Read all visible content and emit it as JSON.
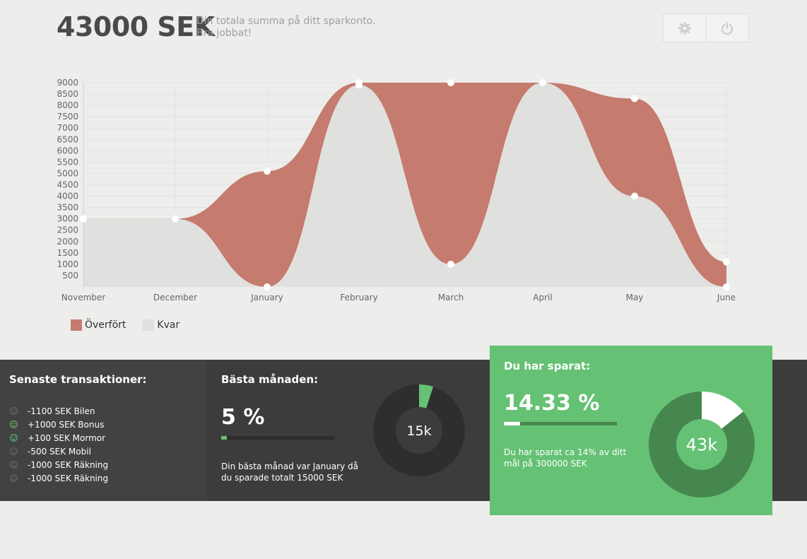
{
  "header": {
    "amount": "43000 SEK",
    "subtitle_line1": "Din totala summa på ditt sparkonto.",
    "subtitle_line2": "Bra jobbat!"
  },
  "toolbar": {
    "settings_icon": "gear-icon",
    "power_icon": "power-icon"
  },
  "chart_data": {
    "type": "area",
    "categories": [
      "November",
      "December",
      "January",
      "February",
      "March",
      "April",
      "May",
      "June"
    ],
    "series": [
      {
        "name": "Överfört",
        "color": "#c57b6e",
        "values": [
          3000,
          3000,
          5100,
          9000,
          9000,
          9000,
          8300,
          1100
        ]
      },
      {
        "name": "Kvar",
        "color": "#e0e0de",
        "values": [
          3000,
          3000,
          0,
          8900,
          1000,
          9000,
          4000,
          0
        ]
      }
    ],
    "yticks": [
      500,
      1000,
      1500,
      2000,
      2500,
      3000,
      3500,
      4000,
      4500,
      5000,
      5500,
      6000,
      6500,
      7000,
      7500,
      8000,
      8500,
      9000
    ],
    "ylim": [
      0,
      9000
    ],
    "grid": true,
    "legend": "bottom-left"
  },
  "transactions": {
    "title": "Senaste transaktioner:",
    "items": [
      {
        "text": "-1100 SEK Bilen",
        "mood": "sad"
      },
      {
        "text": "+1000 SEK Bonus",
        "mood": "happy"
      },
      {
        "text": "+100 SEK Mormor",
        "mood": "happy"
      },
      {
        "text": "-500 SEK Mobil",
        "mood": "sad"
      },
      {
        "text": "-1000 SEK Räkning",
        "mood": "sad"
      },
      {
        "text": "-1000 SEK Räkning",
        "mood": "sad"
      }
    ]
  },
  "best_month": {
    "title": "Bästa månaden:",
    "percent": "5 %",
    "progress": 0.05,
    "desc_line1": "Din bästa månad var January då",
    "desc_line2": "du sparade totalt 15000 SEK",
    "donut_label": "15k",
    "donut_fraction": 0.05
  },
  "saved": {
    "title": "Du har sparat:",
    "percent": "14.33 %",
    "progress": 0.1433,
    "desc_line1": "Du har sparat ca 14% av ditt",
    "desc_line2": "mål på 300000 SEK",
    "donut_label": "43k",
    "donut_fraction": 0.1433
  },
  "colors": {
    "accent_green": "#65c174",
    "dark_green": "#46874f",
    "transfer_red": "#c57b6e",
    "remaining_gray": "#e0e0de"
  }
}
